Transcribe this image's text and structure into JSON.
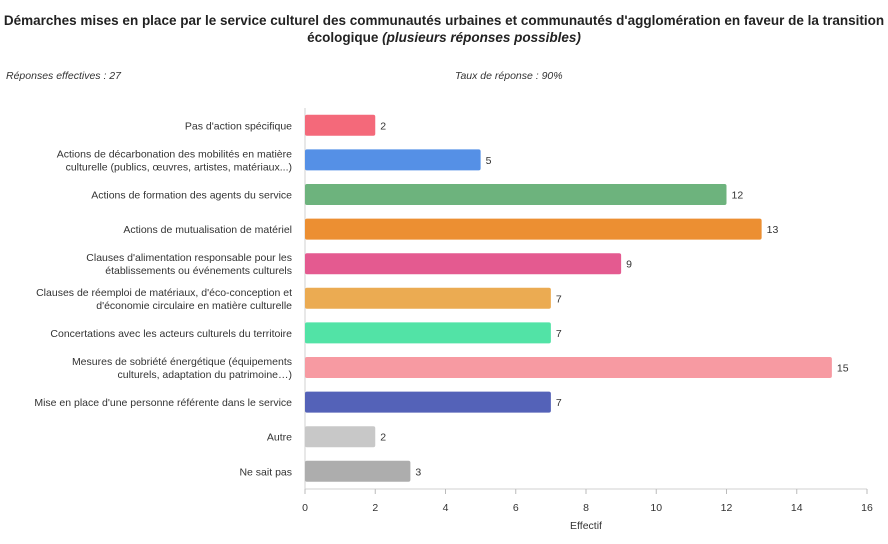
{
  "header": {
    "title_main": "Démarches mises en place par le service culturel des communautés urbaines et communautés d'agglomération en faveur de la transition",
    "title_cont": "écologique",
    "title_italic": "(plusieurs réponses possibles)",
    "responses": "Réponses effectives : 27",
    "rate": "Taux de réponse : 90%"
  },
  "chart_data": {
    "type": "bar",
    "orientation": "horizontal",
    "title": "Démarches mises en place par le service culturel des communautés urbaines et communautés d'agglomération en faveur de la transition écologique (plusieurs réponses possibles)",
    "xlabel": "Effectif",
    "ylabel": "",
    "xlim": [
      0,
      16
    ],
    "xticks": [
      0,
      2,
      4,
      6,
      8,
      10,
      12,
      14,
      16
    ],
    "categories": [
      [
        "Pas d'action spécifique"
      ],
      [
        "Actions de décarbonation des mobilités en matière",
        "culturelle (publics, œuvres, artistes, matériaux...)"
      ],
      [
        "Actions de formation des agents du service"
      ],
      [
        "Actions de mutualisation de matériel"
      ],
      [
        "Clauses d'alimentation responsable pour les",
        "établissements ou événements culturels"
      ],
      [
        "Clauses de réemploi de matériaux, d'éco-conception et",
        "d'économie circulaire en matière culturelle"
      ],
      [
        "Concertations avec les acteurs culturels du territoire"
      ],
      [
        "Mesures de sobriété énergétique (équipements",
        "culturels, adaptation du patrimoine…)"
      ],
      [
        "Mise en place d'une personne référente dans le service"
      ],
      [
        "Autre"
      ],
      [
        "Ne sait pas"
      ]
    ],
    "values": [
      2,
      5,
      12,
      13,
      9,
      7,
      7,
      15,
      7,
      2,
      3
    ],
    "colors": [
      "#f4697a",
      "#5590e6",
      "#6db37d",
      "#ec8f32",
      "#e45a90",
      "#ebab52",
      "#52e3a6",
      "#f79aa2",
      "#5462b8",
      "#c8c8c8",
      "#adadad"
    ],
    "grid": false,
    "legend": "none"
  }
}
